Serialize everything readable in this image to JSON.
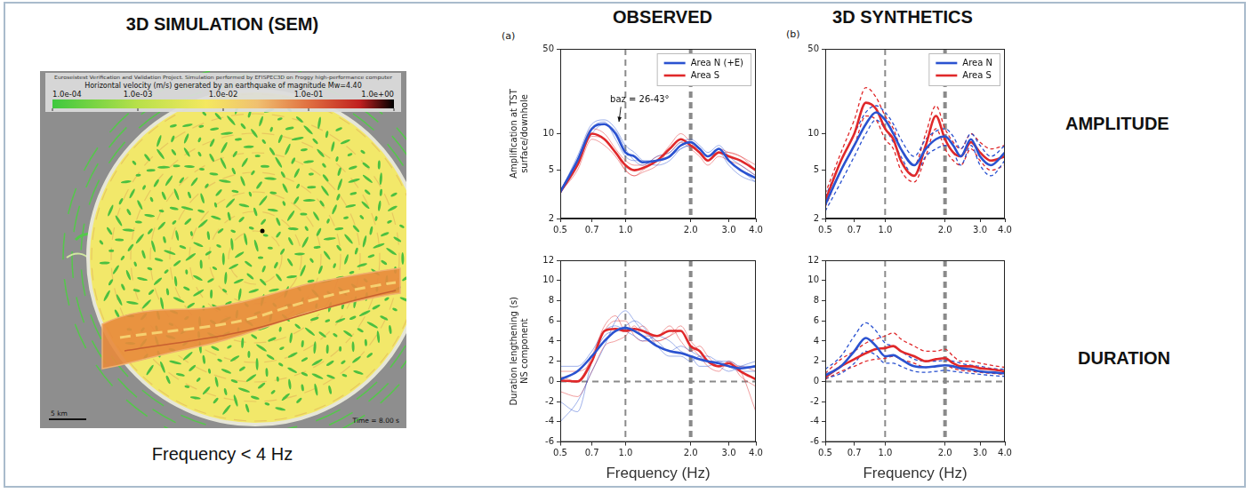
{
  "header": {
    "title": "3D SIMULATION (SEM)",
    "caption": "Frequency < 4 Hz",
    "columns": [
      "OBSERVED",
      "3D SYNTHETICS"
    ],
    "panel_letters": [
      "(a)",
      "(b)"
    ],
    "row_labels": [
      "AMPLITUDE",
      "DURATION"
    ]
  },
  "simulation": {
    "credit": "Euroseistest Verification and Validation Project. Simulation performed by EFISPEC3D on Froggy high-performance computer",
    "colorbar_title": "Horizontal velocity (m/s) generated by an earthquake of magnitude Mw=4.40",
    "colorbar_range": [
      0.0001,
      1
    ],
    "colorbar_ticks": [
      {
        "value": 0.0001,
        "label": "1.0e-04"
      },
      {
        "value": 0.001,
        "label": "1.0e-03"
      },
      {
        "value": 0.01,
        "label": "1.0e-02"
      },
      {
        "value": 0.1,
        "label": "1.0e-01"
      },
      {
        "value": 1,
        "label": "1.0e+00"
      }
    ],
    "scale_bar": "5 km",
    "time_label": "Time = 8.00 s"
  },
  "chart_data": [
    {
      "type": "line",
      "y_label": "Amplification at TST surface/downhole",
      "annotation": {
        "text": "baz = 26-43°"
      },
      "log": true,
      "grid": false,
      "legend": "upper right",
      "x": [
        0.5,
        0.6,
        0.7,
        0.8,
        0.9,
        1.0,
        1.1,
        1.2,
        1.4,
        1.6,
        1.8,
        2.0,
        2.2,
        2.4,
        2.7,
        3.0,
        3.4,
        4.0
      ],
      "xlim": [
        0.5,
        4
      ],
      "xticks": [
        0.5,
        0.7,
        {
          "value": 1,
          "label": "1.0"
        },
        {
          "value": 2,
          "label": "2.0"
        },
        {
          "value": 3,
          "label": "3.0"
        },
        {
          "value": 4,
          "label": "4.0"
        }
      ],
      "ylim": [
        2,
        50
      ],
      "yticks": [
        2,
        5,
        10,
        50
      ],
      "vlines": [
        1,
        2
      ],
      "series": [
        {
          "name": "Area N (+E)",
          "color": "#2a52d0",
          "values": [
            3.3,
            6,
            11,
            12,
            10,
            7,
            6.5,
            5.8,
            6,
            6.5,
            8,
            8.5,
            7.5,
            6.5,
            7.5,
            6,
            5,
            4.3
          ]
        },
        {
          "name": "Area S",
          "color": "#e0282a",
          "values": [
            3.3,
            5.5,
            10,
            9,
            7,
            5.5,
            5,
            5.2,
            6,
            7.5,
            9,
            8,
            7,
            6,
            7,
            6.5,
            6,
            5
          ]
        }
      ],
      "individual_series": [
        {
          "color": "#2a52d0",
          "values": [
            3.3,
            6.5,
            12,
            13,
            11,
            8,
            7,
            6,
            5.5,
            6,
            7.5,
            8,
            7,
            6,
            7,
            5.5,
            4.5,
            4
          ]
        },
        {
          "color": "#2a52d0",
          "values": [
            3.4,
            6,
            10,
            12,
            10.5,
            7.5,
            6,
            5.5,
            6.5,
            7,
            8.5,
            9,
            8,
            7,
            8,
            6.5,
            5.5,
            4.5
          ]
        },
        {
          "color": "#2a52d0",
          "values": [
            3.2,
            5.5,
            11,
            12.5,
            9,
            6.5,
            6,
            6,
            6,
            6.5,
            7.5,
            8,
            7,
            6,
            7.5,
            6,
            5,
            4
          ]
        },
        {
          "color": "#e0282a",
          "values": [
            3.3,
            5,
            9,
            8,
            6.5,
            5,
            4.5,
            5,
            6,
            8,
            10,
            8.5,
            7,
            6,
            7.5,
            7,
            6.5,
            5.5
          ]
        },
        {
          "color": "#e0282a",
          "values": [
            3.4,
            6,
            11,
            10,
            7.5,
            6,
            5.5,
            5.5,
            6.5,
            7,
            8.5,
            7.5,
            6.5,
            5.5,
            6.5,
            6,
            5.5,
            4.5
          ]
        },
        {
          "color": "#e0282a",
          "values": [
            3.2,
            5.5,
            9.5,
            9,
            7,
            5,
            4.5,
            4.8,
            5.5,
            7.5,
            9,
            8,
            7.5,
            6.5,
            7,
            7,
            6.5,
            5
          ]
        }
      ]
    },
    {
      "type": "line",
      "log": true,
      "grid": false,
      "legend": "upper right",
      "x": [
        0.5,
        0.6,
        0.7,
        0.8,
        0.9,
        1.0,
        1.1,
        1.2,
        1.4,
        1.6,
        1.8,
        2.0,
        2.2,
        2.4,
        2.7,
        3.0,
        3.4,
        4.0
      ],
      "xlim": [
        0.5,
        4
      ],
      "xticks": [
        0.5,
        0.7,
        {
          "value": 1,
          "label": "1.0"
        },
        {
          "value": 2,
          "label": "2.0"
        },
        {
          "value": 3,
          "label": "3.0"
        },
        {
          "value": 4,
          "label": "4.0"
        }
      ],
      "ylim": [
        2,
        50
      ],
      "yticks": [
        2,
        5,
        10,
        50
      ],
      "vlines": [
        1,
        2
      ],
      "series": [
        {
          "name": "Area N",
          "color": "#2a52d0",
          "values": [
            2.6,
            5,
            8,
            12,
            15,
            13,
            10,
            7.5,
            5.5,
            7.5,
            9,
            9.5,
            8,
            6.5,
            9,
            6.5,
            5.5,
            7
          ]
        },
        {
          "name": "Area S",
          "color": "#e0282a",
          "values": [
            2.8,
            6,
            10,
            18,
            16,
            11,
            9,
            6,
            4.5,
            8,
            14,
            9,
            7,
            6.5,
            8.5,
            7,
            6,
            6.5
          ]
        }
      ],
      "individual_series": [
        {
          "color": "#2a52d0",
          "line_style": "dashed",
          "values": [
            3,
            6,
            10,
            15,
            17,
            15,
            12,
            9,
            6.5,
            9,
            10.5,
            11,
            9.5,
            7.5,
            10,
            8,
            6.5,
            8
          ]
        },
        {
          "color": "#2a52d0",
          "line_style": "dashed",
          "values": [
            2.3,
            4,
            6.5,
            10,
            13,
            11,
            8.5,
            6.5,
            4.5,
            6.5,
            7.5,
            8,
            7,
            5.5,
            8,
            5.5,
            4.5,
            6
          ]
        },
        {
          "color": "#e0282a",
          "line_style": "dashed",
          "values": [
            3.2,
            7,
            13,
            24,
            20,
            14,
            11,
            7.5,
            5.5,
            10,
            17,
            11,
            8.5,
            7.5,
            10,
            8.5,
            7.5,
            8
          ]
        },
        {
          "color": "#e0282a",
          "line_style": "dashed",
          "values": [
            2.5,
            5,
            8,
            14,
            13,
            9,
            7.5,
            5,
            4,
            6.5,
            11,
            7.5,
            6,
            5.5,
            7.5,
            6,
            5,
            5.5
          ]
        }
      ]
    },
    {
      "type": "line",
      "x_label": "Frequency (Hz)",
      "y_label": "Duration lengthening (s) NS component",
      "log": "x",
      "grid": false,
      "x": [
        0.5,
        0.6,
        0.7,
        0.8,
        0.9,
        1.0,
        1.1,
        1.2,
        1.4,
        1.6,
        1.8,
        2.0,
        2.2,
        2.4,
        2.7,
        3.0,
        3.4,
        4.0
      ],
      "xlim": [
        0.5,
        4
      ],
      "xticks": [
        0.5,
        0.7,
        {
          "value": 1,
          "label": "1.0"
        },
        {
          "value": 2,
          "label": "2.0"
        },
        {
          "value": 3,
          "label": "3.0"
        },
        {
          "value": 4,
          "label": "4.0"
        }
      ],
      "ylim": [
        -6,
        12
      ],
      "yticks": [
        -6,
        -4,
        -2,
        0,
        2,
        4,
        6,
        8,
        10,
        12
      ],
      "vlines": [
        1,
        2
      ],
      "hlines": [
        0
      ],
      "series": [
        {
          "color": "#2a52d0",
          "values": [
            0.2,
            1,
            2.5,
            4,
            5,
            5.3,
            5,
            4.5,
            3.5,
            3,
            2.8,
            2.5,
            2.2,
            2,
            1.8,
            1.5,
            1.3,
            1.5
          ]
        },
        {
          "color": "#e0282a",
          "values": [
            0.1,
            0,
            2,
            5,
            5.2,
            5,
            5.2,
            5,
            4.5,
            5,
            5,
            3.5,
            3,
            2,
            1.5,
            1.8,
            1,
            0.2
          ]
        }
      ],
      "individual_series": [
        {
          "color": "#2a52d0",
          "values": [
            -4,
            -2,
            1,
            3.5,
            6,
            7,
            6,
            5,
            4,
            3,
            3.5,
            3,
            2.5,
            2,
            1.5,
            1,
            1.5,
            2
          ]
        },
        {
          "color": "#2a52d0",
          "values": [
            1.5,
            1.5,
            3,
            5,
            5.5,
            5,
            4.5,
            4,
            4.5,
            4,
            3,
            2.5,
            1.5,
            1.5,
            2,
            1.5,
            1,
            1
          ]
        },
        {
          "color": "#2a52d0",
          "values": [
            -2,
            -3,
            2,
            4.5,
            5,
            5.5,
            6,
            5.5,
            3.5,
            2.5,
            2.5,
            2,
            2.5,
            2.5,
            2,
            2,
            1.5,
            1.5
          ]
        },
        {
          "color": "#e0282a",
          "values": [
            0.5,
            0,
            2.5,
            5.5,
            6.5,
            5,
            5,
            5.5,
            4,
            4.5,
            5.5,
            4,
            3,
            2,
            1.5,
            2,
            1,
            -3
          ]
        },
        {
          "color": "#e0282a",
          "values": [
            -1,
            -1.5,
            1,
            3.5,
            4,
            4.5,
            5.5,
            4.5,
            4.5,
            5.5,
            4,
            3,
            3.5,
            2.5,
            1.5,
            1.5,
            1.5,
            1
          ]
        },
        {
          "color": "#e0282a",
          "values": [
            1,
            1,
            2,
            5,
            6,
            6,
            4.5,
            4,
            4,
            4.5,
            5,
            3.5,
            2.5,
            1.5,
            1,
            2,
            0.5,
            -0.5
          ]
        }
      ]
    },
    {
      "type": "line",
      "x_label": "Frequency (Hz)",
      "log": "x",
      "grid": false,
      "x": [
        0.5,
        0.6,
        0.7,
        0.8,
        0.9,
        1.0,
        1.1,
        1.2,
        1.4,
        1.6,
        1.8,
        2.0,
        2.2,
        2.4,
        2.7,
        3.0,
        3.4,
        4.0
      ],
      "xlim": [
        0.5,
        4
      ],
      "xticks": [
        0.5,
        0.7,
        {
          "value": 1,
          "label": "1.0"
        },
        {
          "value": 2,
          "label": "2.0"
        },
        {
          "value": 3,
          "label": "3.0"
        },
        {
          "value": 4,
          "label": "4.0"
        }
      ],
      "ylim": [
        -6,
        12
      ],
      "yticks": [
        -6,
        -4,
        -2,
        0,
        2,
        4,
        6,
        8,
        10,
        12
      ],
      "vlines": [
        1,
        2
      ],
      "hlines": [
        0
      ],
      "series": [
        {
          "color": "#2a52d0",
          "values": [
            0.6,
            1.5,
            3,
            4.3,
            3.5,
            2.5,
            2.6,
            2.2,
            1.5,
            1.4,
            1.5,
            1.6,
            1.5,
            1.3,
            1.2,
            1,
            0.9,
            0.8
          ]
        },
        {
          "color": "#e0282a",
          "values": [
            0.4,
            1.5,
            2.2,
            2.8,
            3.2,
            3.3,
            3.5,
            3,
            2.5,
            2,
            2.2,
            2.3,
            1.8,
            1.5,
            1.5,
            1.3,
            1.2,
            1
          ]
        }
      ],
      "individual_series": [
        {
          "color": "#2a52d0",
          "line_style": "dashed",
          "values": [
            1.2,
            2.5,
            4.5,
            5.8,
            5,
            3.8,
            3.5,
            3,
            2.2,
            2,
            2,
            2.1,
            2,
            1.8,
            1.6,
            1.5,
            1.3,
            1.2
          ]
        },
        {
          "color": "#2a52d0",
          "line_style": "dashed",
          "values": [
            0.3,
            0.8,
            1.8,
            3,
            2.6,
            1.8,
            1.8,
            1.5,
            1,
            0.9,
            1,
            1.1,
            1,
            0.9,
            0.8,
            0.7,
            0.6,
            0.5
          ]
        },
        {
          "color": "#e0282a",
          "line_style": "dashed",
          "values": [
            0.8,
            2.2,
            3,
            3.8,
            4.2,
            4.5,
            4.8,
            4.2,
            3.5,
            3,
            3,
            3.2,
            2.5,
            2,
            2,
            1.8,
            1.6,
            1.4
          ]
        },
        {
          "color": "#e0282a",
          "line_style": "dashed",
          "values": [
            0.2,
            1,
            1.5,
            2,
            2.2,
            2.3,
            2.5,
            2.2,
            1.8,
            1.4,
            1.5,
            1.6,
            1.3,
            1.1,
            1,
            0.9,
            0.8,
            0.7
          ]
        }
      ]
    }
  ]
}
